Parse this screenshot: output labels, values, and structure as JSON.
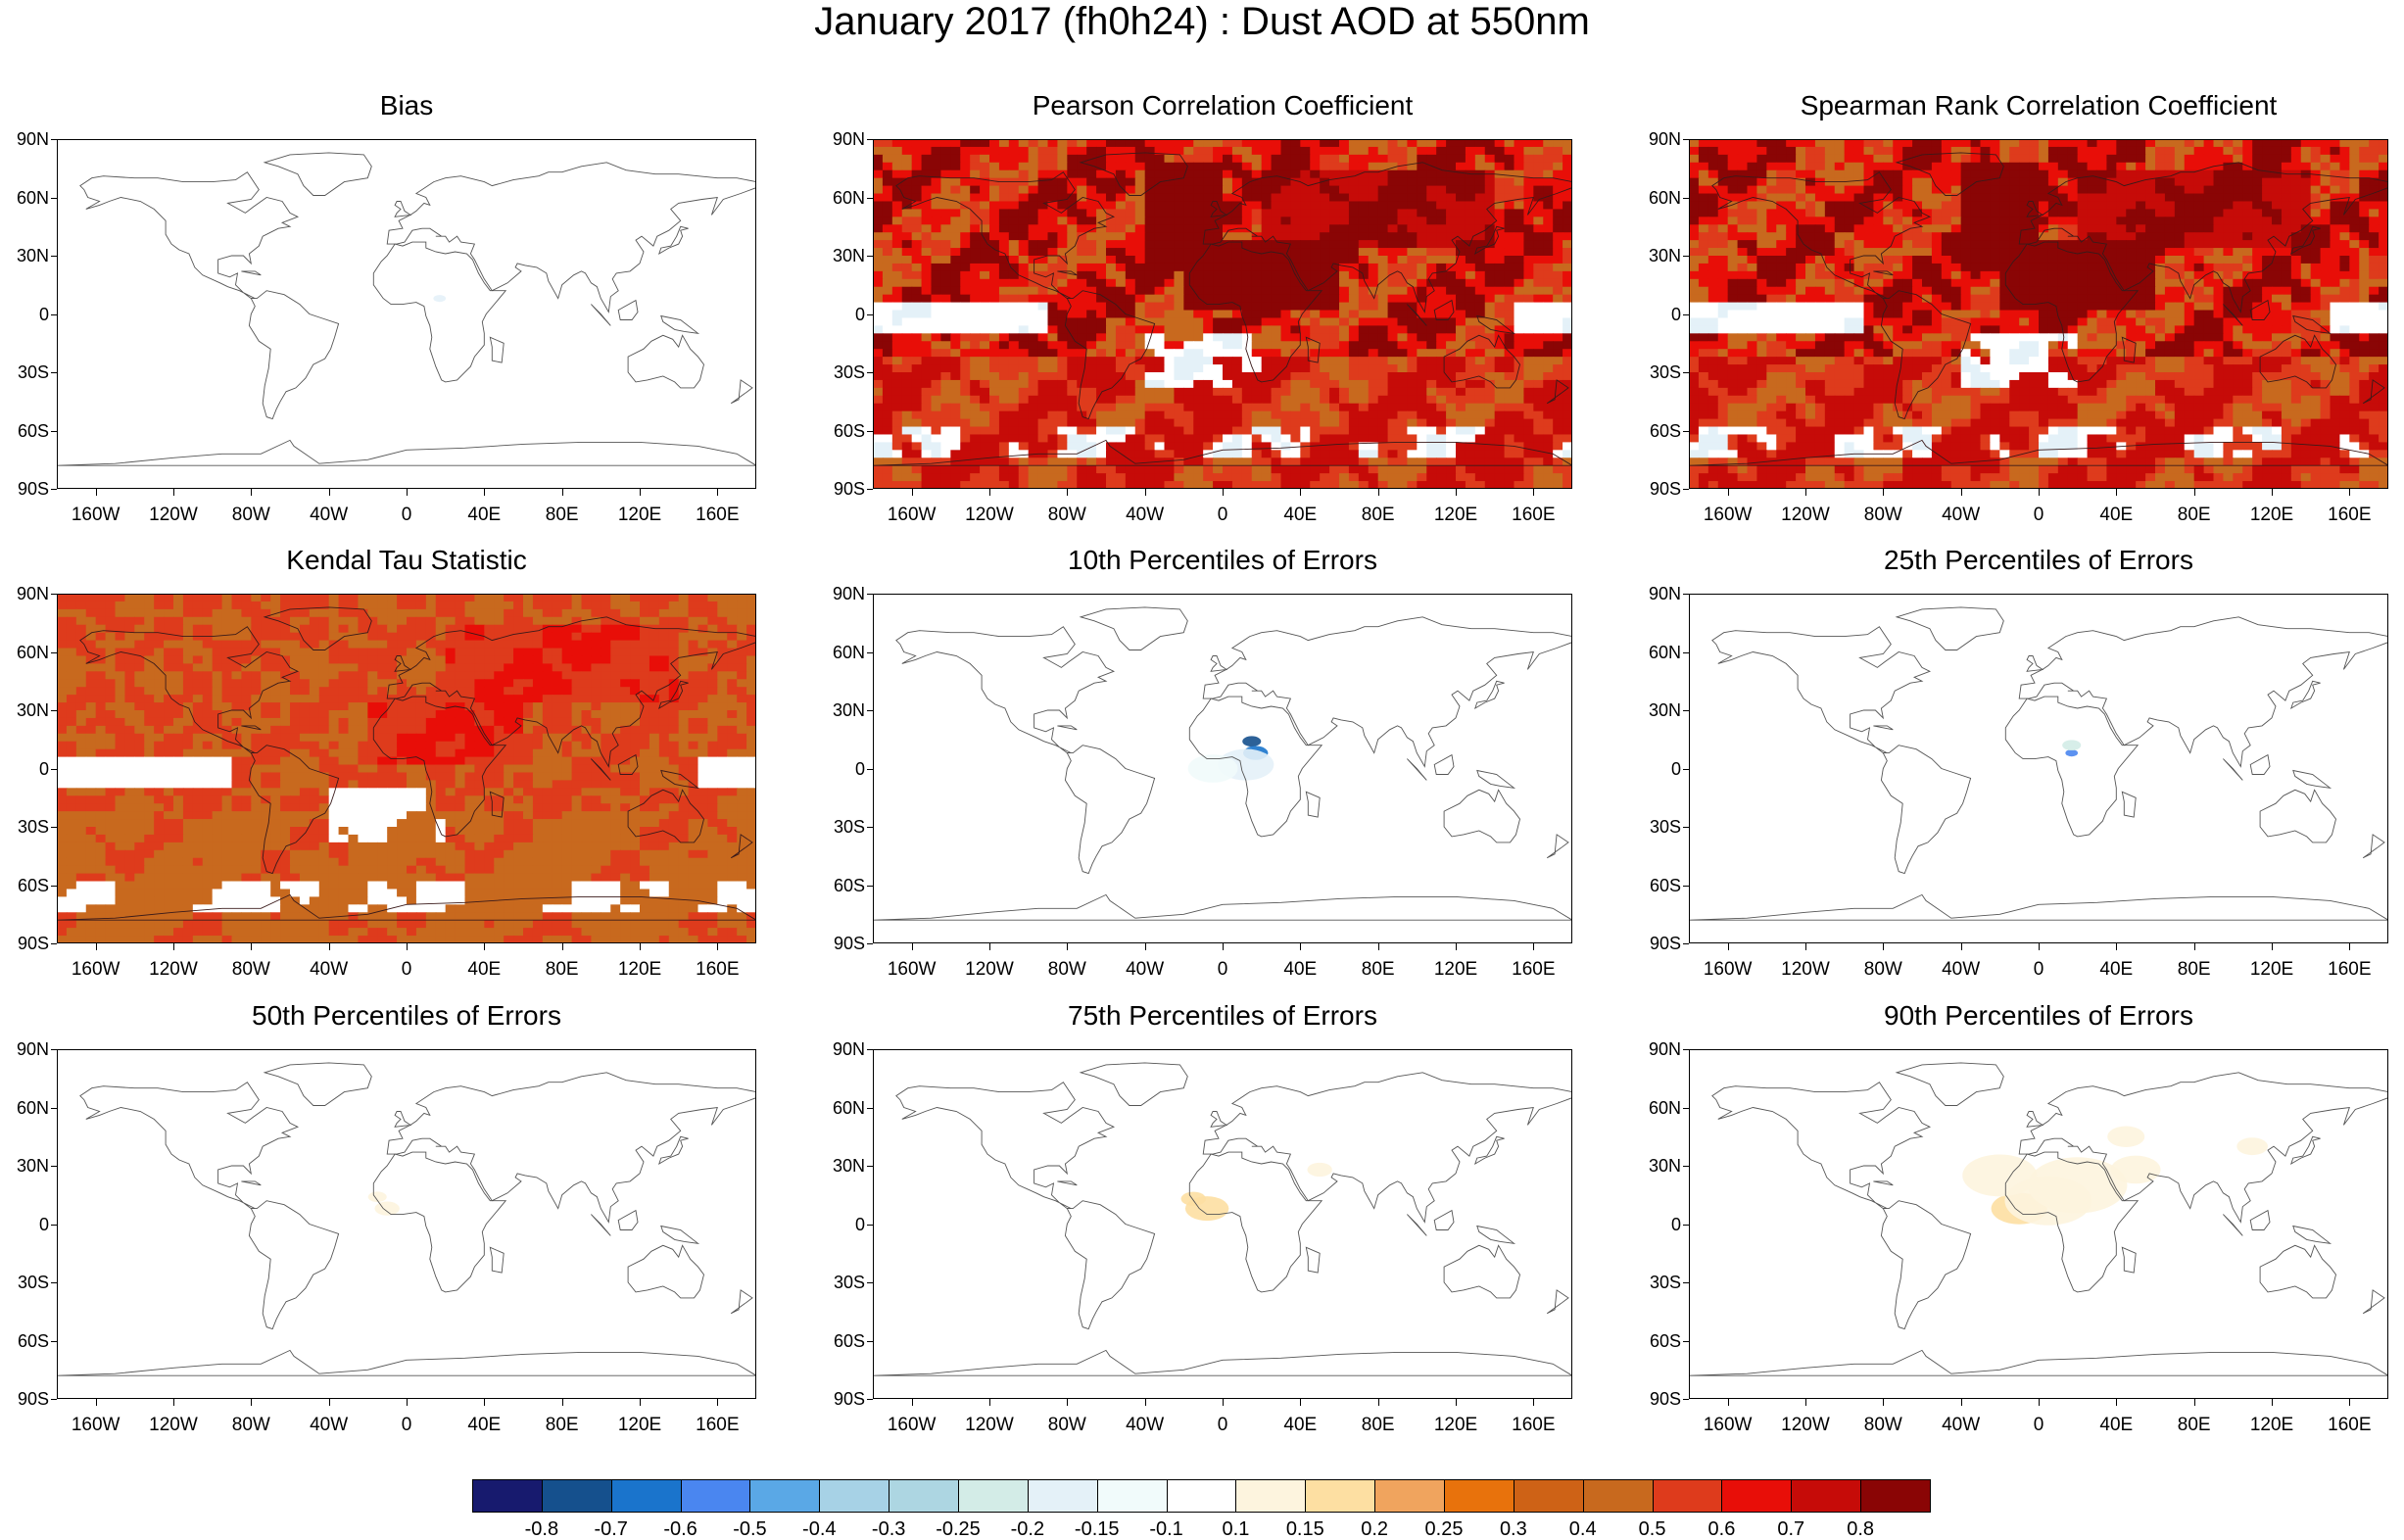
{
  "title": "January 2017 (fh0h24) : Dust AOD at 550nm",
  "lat_labels": [
    "90N",
    "60N",
    "30N",
    "0",
    "30S",
    "60S",
    "90S"
  ],
  "lon_labels": [
    "160W",
    "120W",
    "80W",
    "40W",
    "0",
    "40E",
    "80E",
    "120E",
    "160E"
  ],
  "colorbar": {
    "labels": [
      "-0.8",
      "-0.7",
      "-0.6",
      "-0.5",
      "-0.4",
      "-0.3",
      "-0.25",
      "-0.2",
      "-0.15",
      "-0.1",
      "0.1",
      "0.15",
      "0.2",
      "0.25",
      "0.3",
      "0.4",
      "0.5",
      "0.6",
      "0.7",
      "0.8"
    ],
    "colors": [
      "#171a6e",
      "#15508d",
      "#1a74cc",
      "#4a86f0",
      "#5aa8e6",
      "#a7d2e6",
      "#add6e2",
      "#d3ece7",
      "#e4f1f8",
      "#f1fbfb",
      "#ffffff",
      "#fdf4de",
      "#fddfa2",
      "#f0a45e",
      "#e8720c",
      "#ce6216",
      "#c8691e",
      "#de3b1c",
      "#e80e08",
      "#c60b08",
      "#8a0505"
    ]
  },
  "chart_data": [
    {
      "type": "heatmap",
      "title": "Bias",
      "field": "bias",
      "ylim": [
        -90,
        90
      ],
      "xlim": [
        -180,
        180
      ]
    },
    {
      "type": "heatmap",
      "title": "Pearson Correlation Coefficient",
      "field": "pearson",
      "ylim": [
        -90,
        90
      ],
      "xlim": [
        -180,
        180
      ]
    },
    {
      "type": "heatmap",
      "title": "Spearman Rank Correlation Coefficient",
      "field": "spearman",
      "ylim": [
        -90,
        90
      ],
      "xlim": [
        -180,
        180
      ]
    },
    {
      "type": "heatmap",
      "title": "Kendal Tau Statistic",
      "field": "kendall",
      "ylim": [
        -90,
        90
      ],
      "xlim": [
        -180,
        180
      ]
    },
    {
      "type": "heatmap",
      "title": "10th Percentiles of Errors",
      "field": "p10",
      "ylim": [
        -90,
        90
      ],
      "xlim": [
        -180,
        180
      ]
    },
    {
      "type": "heatmap",
      "title": "25th Percentiles of Errors",
      "field": "p25",
      "ylim": [
        -90,
        90
      ],
      "xlim": [
        -180,
        180
      ]
    },
    {
      "type": "heatmap",
      "title": "50th Percentiles of Errors",
      "field": "p50",
      "ylim": [
        -90,
        90
      ],
      "xlim": [
        -180,
        180
      ]
    },
    {
      "type": "heatmap",
      "title": "75th Percentiles of Errors",
      "field": "p75",
      "ylim": [
        -90,
        90
      ],
      "xlim": [
        -180,
        180
      ]
    },
    {
      "type": "heatmap",
      "title": "90th Percentiles of Errors",
      "field": "p90",
      "ylim": [
        -90,
        90
      ],
      "xlim": [
        -180,
        180
      ]
    }
  ]
}
